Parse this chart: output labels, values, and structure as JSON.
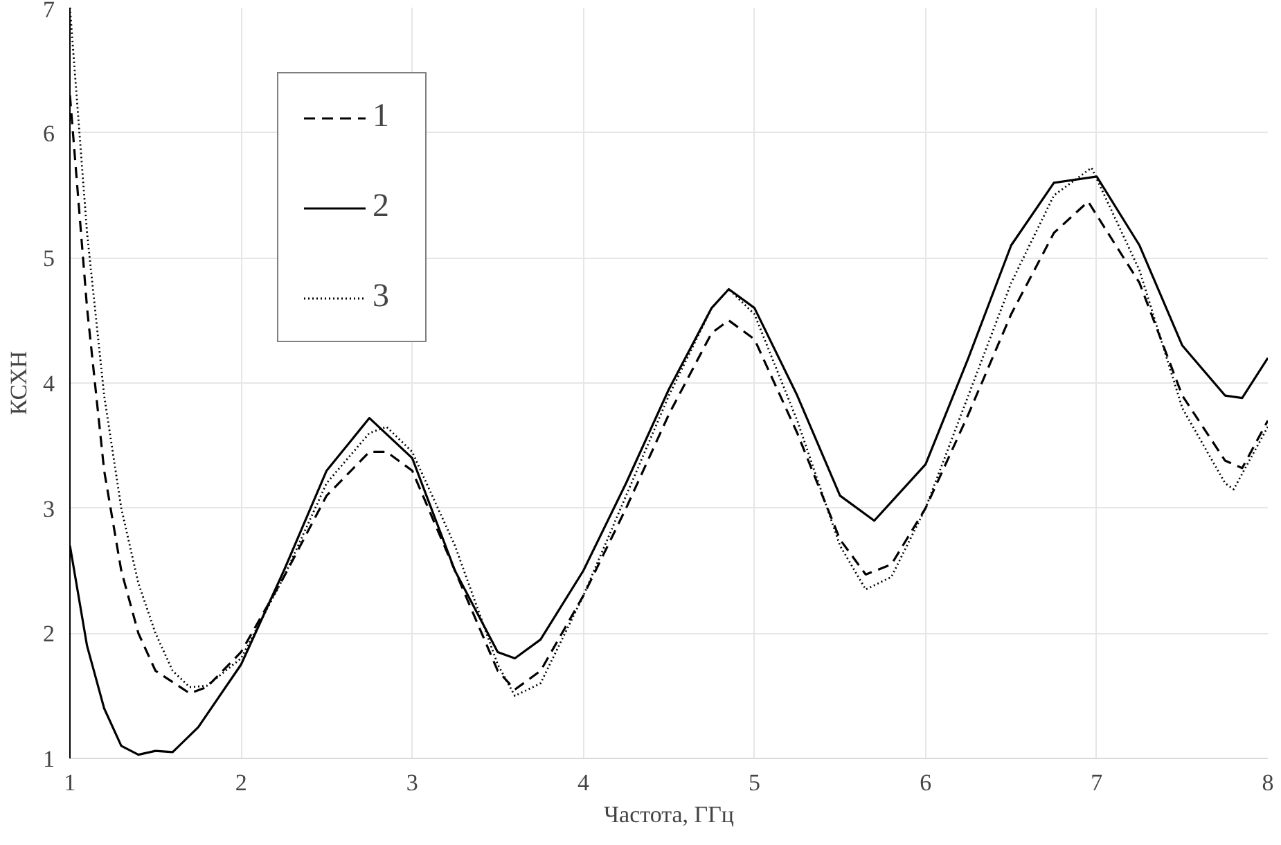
{
  "chart_data": {
    "type": "line",
    "xlabel": "Частота, ГГц",
    "ylabel": "КСХН",
    "xlim": [
      1,
      8
    ],
    "ylim": [
      1,
      7
    ],
    "xticks": [
      1,
      2,
      3,
      4,
      5,
      6,
      7,
      8
    ],
    "yticks": [
      1,
      2,
      3,
      4,
      5,
      6,
      7
    ],
    "grid": true,
    "legend": "top",
    "marker": "none",
    "series": [
      {
        "name": "1",
        "color": "#000000",
        "line_style": "dashed",
        "x": [
          1,
          1.1,
          1.2,
          1.3,
          1.4,
          1.5,
          1.7,
          1.8,
          2,
          2.25,
          2.5,
          2.75,
          2.85,
          3,
          3.25,
          3.5,
          3.6,
          3.75,
          4,
          4.25,
          4.5,
          4.75,
          4.85,
          5,
          5.25,
          5.5,
          5.65,
          5.8,
          6,
          6.25,
          6.5,
          6.75,
          6.95,
          7.25,
          7.5,
          7.75,
          7.85,
          8
        ],
        "values": [
          6.3,
          4.6,
          3.3,
          2.5,
          2.0,
          1.7,
          1.52,
          1.57,
          1.85,
          2.45,
          3.1,
          3.45,
          3.45,
          3.3,
          2.5,
          1.7,
          1.55,
          1.7,
          2.3,
          3.0,
          3.75,
          4.4,
          4.5,
          4.35,
          3.6,
          2.75,
          2.47,
          2.55,
          3.0,
          3.75,
          4.55,
          5.2,
          5.45,
          4.8,
          3.9,
          3.38,
          3.32,
          3.7
        ]
      },
      {
        "name": "2",
        "color": "#000000",
        "line_style": "solid",
        "x": [
          1,
          1.1,
          1.2,
          1.3,
          1.4,
          1.5,
          1.6,
          1.75,
          2,
          2.25,
          2.5,
          2.75,
          3,
          3.25,
          3.5,
          3.6,
          3.75,
          4,
          4.25,
          4.5,
          4.75,
          4.85,
          5,
          5.25,
          5.5,
          5.7,
          6,
          6.25,
          6.5,
          6.75,
          7,
          7.25,
          7.5,
          7.75,
          7.85,
          8
        ],
        "values": [
          2.7,
          1.9,
          1.4,
          1.1,
          1.03,
          1.06,
          1.05,
          1.25,
          1.75,
          2.5,
          3.3,
          3.72,
          3.4,
          2.5,
          1.85,
          1.8,
          1.95,
          2.5,
          3.2,
          3.95,
          4.6,
          4.75,
          4.6,
          3.9,
          3.1,
          2.9,
          3.35,
          4.2,
          5.1,
          5.6,
          5.65,
          5.1,
          4.3,
          3.9,
          3.88,
          4.2
        ]
      },
      {
        "name": "3",
        "color": "#000000",
        "line_style": "dotted",
        "x": [
          1,
          1.1,
          1.2,
          1.3,
          1.4,
          1.5,
          1.6,
          1.7,
          1.8,
          2,
          2.25,
          2.5,
          2.75,
          2.85,
          3,
          3.25,
          3.5,
          3.6,
          3.75,
          4,
          4.25,
          4.5,
          4.75,
          4.85,
          5,
          5.25,
          5.5,
          5.65,
          5.8,
          6,
          6.25,
          6.5,
          6.75,
          6.97,
          7.25,
          7.5,
          7.75,
          7.8,
          8
        ],
        "values": [
          7.0,
          5.2,
          3.9,
          3.0,
          2.4,
          2.0,
          1.7,
          1.57,
          1.58,
          1.8,
          2.45,
          3.2,
          3.6,
          3.65,
          3.45,
          2.7,
          1.75,
          1.5,
          1.6,
          2.3,
          3.1,
          3.9,
          4.6,
          4.75,
          4.55,
          3.7,
          2.7,
          2.35,
          2.45,
          3.0,
          3.9,
          4.8,
          5.5,
          5.72,
          4.9,
          3.8,
          3.2,
          3.15,
          3.65
        ]
      }
    ]
  }
}
